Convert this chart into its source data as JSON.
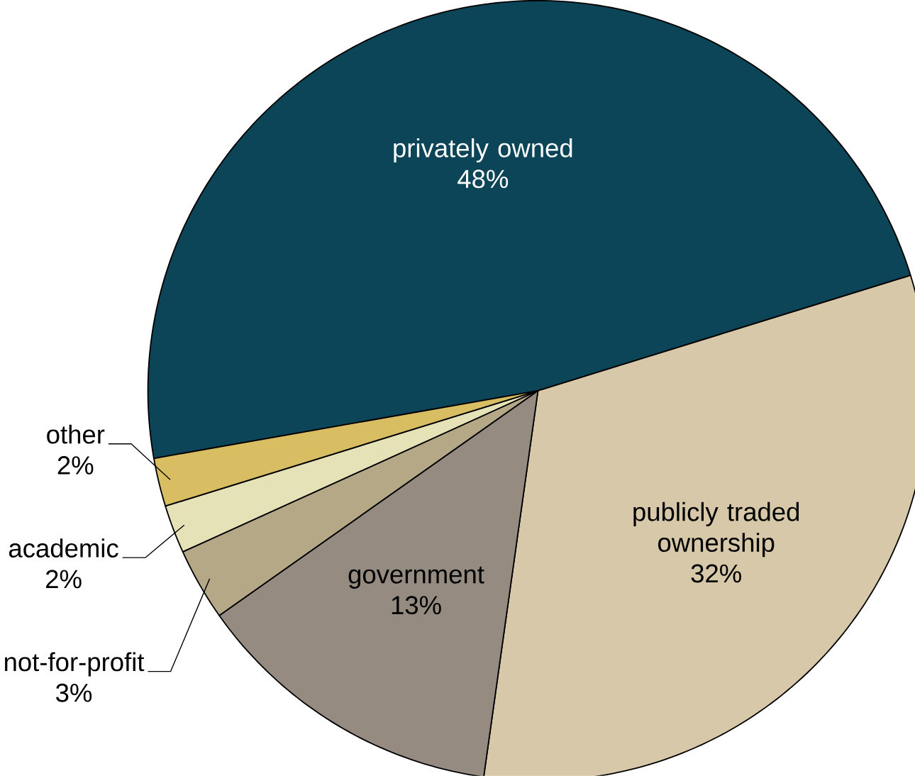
{
  "chart_data": {
    "type": "pie",
    "categories": [
      "privately owned",
      "publicly traded ownership",
      "government",
      "not-for-profit",
      "academic",
      "other"
    ],
    "values": [
      48,
      32,
      13,
      3,
      2,
      2
    ],
    "value_labels": [
      "48%",
      "32%",
      "13%",
      "3%",
      "2%",
      "2%"
    ],
    "colors": [
      "#0b4557",
      "#d6c8a8",
      "#958b80",
      "#b5a887",
      "#e6e2b8",
      "#d8bd63"
    ]
  }
}
